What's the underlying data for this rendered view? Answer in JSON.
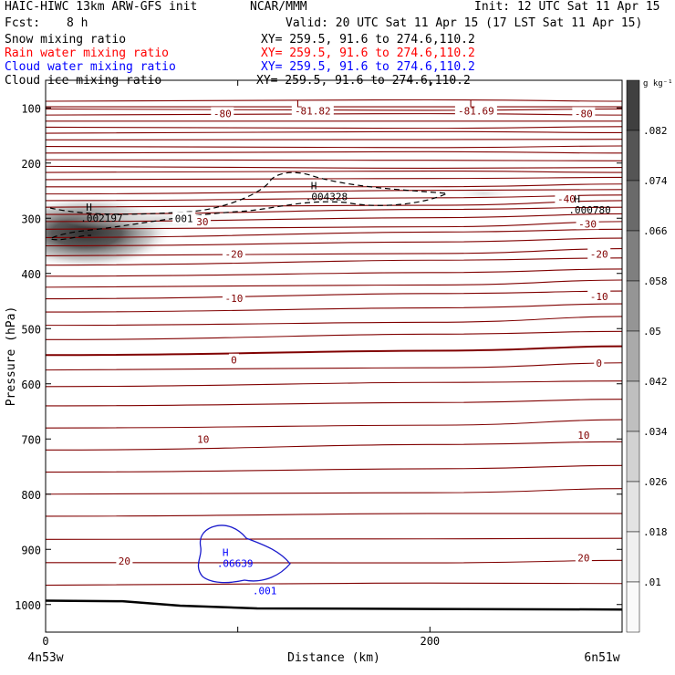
{
  "header": {
    "model": "HAIC-HIWC 13km ARW-GFS init",
    "org": "NCAR/MMM",
    "init": "Init: 12 UTC Sat 11 Apr 15",
    "fcst_label": "Fcst:",
    "fcst_value": "8 h",
    "valid": "Valid: 20 UTC Sat 11 Apr 15 (17 LST Sat 11 Apr 15)"
  },
  "fields": [
    {
      "name": "Snow mixing ratio",
      "xy": "XY= 259.5, 91.6 to 274.6,110.2",
      "color": "#000000"
    },
    {
      "name": "Rain water mixing ratio",
      "xy": "XY= 259.5, 91.6 to 274.6,110.2",
      "color": "#ff0000"
    },
    {
      "name": "Cloud water mixing ratio",
      "xy": "XY= 259.5, 91.6 to 274.6,110.2",
      "color": "#0000ff"
    },
    {
      "name": "Cloud ice mixing ratio",
      "xy": "XY= 259.5, 91.6 to 274.6,110.2",
      "color": "#000000"
    }
  ],
  "colorbar": {
    "unit": "g kg⁻¹",
    "labels": [
      ".082",
      ".074",
      ".066",
      ".058",
      ".05",
      ".042",
      ".034",
      ".026",
      ".018",
      ".01"
    ],
    "colors": [
      "#404040",
      "#555555",
      "#6a6a6a",
      "#7f7f7f",
      "#959595",
      "#aaaaaa",
      "#bfbfbf",
      "#d2d2d2",
      "#e3e3e3",
      "#f0f0f0",
      "#fafafa"
    ]
  },
  "chart_data": {
    "type": "contour cross-section",
    "xlabel": "Distance (km)",
    "ylabel": "Pressure (hPa)",
    "x_ticks": [
      0,
      100,
      200,
      300
    ],
    "x_tick_labels": [
      "0",
      "",
      "200",
      ""
    ],
    "y_ticks": [
      100,
      200,
      300,
      400,
      500,
      600,
      700,
      800,
      900,
      1000
    ],
    "xlim": [
      0,
      300
    ],
    "ylim": [
      1050,
      50
    ],
    "left_end": "4n53w",
    "right_end": "6n51w",
    "temperature_contours": {
      "color": "#800000",
      "interval": 5,
      "labels": [
        {
          "text": "-80",
          "x": 92,
          "p": 110
        },
        {
          "text": "-81.82",
          "x": 139,
          "p": 105
        },
        {
          "text": "-81.69",
          "x": 224,
          "p": 105
        },
        {
          "text": "-80",
          "x": 280,
          "p": 110
        },
        {
          "text": "-40",
          "x": 271,
          "p": 265
        },
        {
          "text": "-30",
          "x": 80,
          "p": 306
        },
        {
          "text": "-30",
          "x": 282,
          "p": 310
        },
        {
          "text": "-20",
          "x": 98,
          "p": 365
        },
        {
          "text": "-20",
          "x": 288,
          "p": 365
        },
        {
          "text": "-10",
          "x": 98,
          "p": 445
        },
        {
          "text": "-10",
          "x": 288,
          "p": 442
        },
        {
          "text": "0",
          "x": 98,
          "p": 557
        },
        {
          "text": "0",
          "x": 288,
          "p": 562
        },
        {
          "text": "10",
          "x": 82,
          "p": 700
        },
        {
          "text": "10",
          "x": 280,
          "p": 693
        },
        {
          "text": "20",
          "x": 41,
          "p": 921
        },
        {
          "text": "20",
          "x": 280,
          "p": 915
        }
      ],
      "maxima": [
        {
          "label": "L",
          "x": 132,
          "p": 92
        },
        {
          "label": "L",
          "x": 222,
          "p": 92
        }
      ]
    },
    "cloud_ice_contour": {
      "level": ".001",
      "style": "dashed",
      "color": "#000000"
    },
    "cloud_water_contour": {
      "level": ".001",
      "style": "solid",
      "color": "#0000ff"
    },
    "extrema": [
      {
        "label": "H",
        "value": ".002197",
        "x": 21,
        "p": 290,
        "color": "#000000"
      },
      {
        "label": "H",
        "value": ".004328",
        "x": 138,
        "p": 251,
        "color": "#000000"
      },
      {
        "label": "H",
        "value": ".000780",
        "x": 275,
        "p": 275,
        "color": "#000000"
      },
      {
        "label": "H",
        "value": ".06639",
        "x": 92,
        "p": 915,
        "color": "#0000ff"
      }
    ],
    "contour_labels": [
      {
        "text": "001",
        "x": 72,
        "p": 300,
        "color": "#000000"
      },
      {
        "text": ".001",
        "x": 114,
        "p": 975,
        "color": "#0000ff"
      }
    ]
  }
}
